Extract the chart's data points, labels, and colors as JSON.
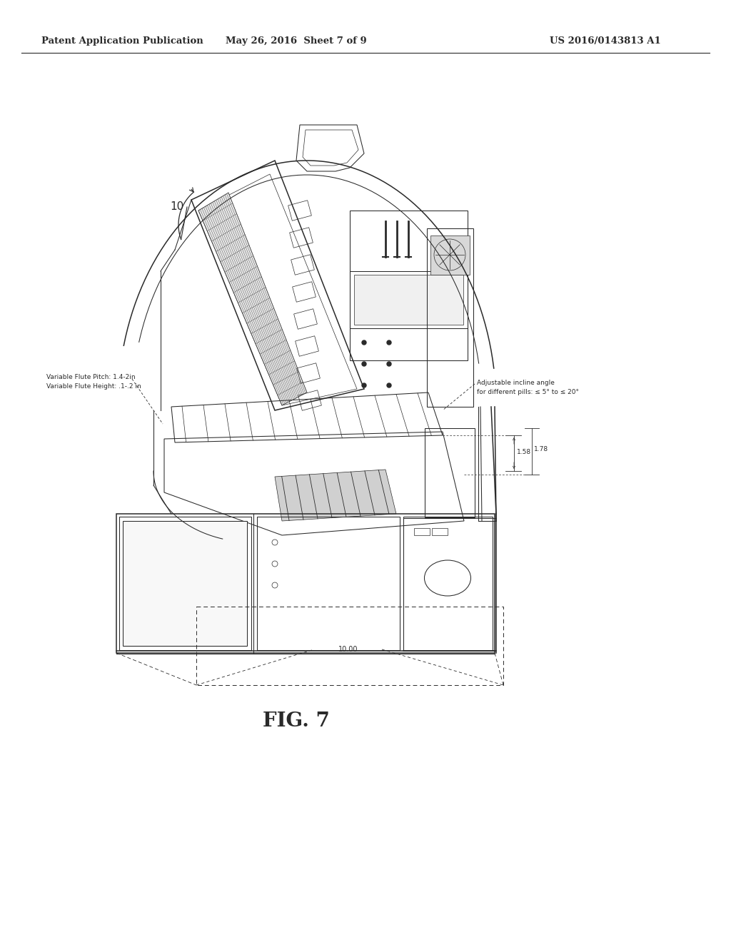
{
  "background_color": "#ffffff",
  "header_left": "Patent Application Publication",
  "header_center": "May 26, 2016  Sheet 7 of 9",
  "header_right": "US 2016/0143813 A1",
  "figure_label": "FIG. 7",
  "label_10": "10",
  "label_10_00": "10.00",
  "annotation_left_line1": "Variable Flute Pitch: 1.4-2in",
  "annotation_left_line2": "Variable Flute Height: .1-.2 in",
  "annotation_right_line1": "Adjustable incline angle",
  "annotation_right_line2": "for different pills: ≤ 5° to ≤ 20°",
  "dim_158": "1.58",
  "dim_178": "1.78",
  "header_font_size": 9.5,
  "figure_label_font_size": 20,
  "annotation_font_size": 6.5,
  "dim_font_size": 6.5
}
